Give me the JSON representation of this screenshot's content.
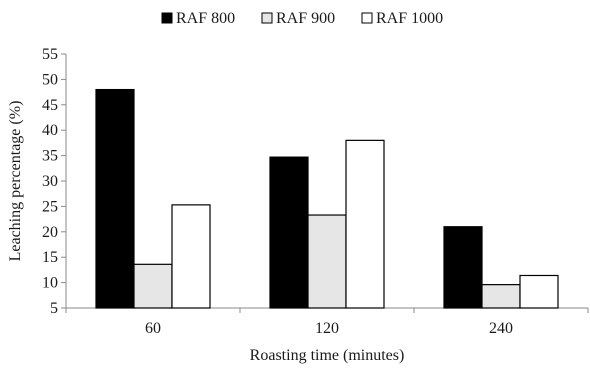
{
  "chart_data": {
    "type": "bar",
    "categories": [
      "60",
      "120",
      "240"
    ],
    "series": [
      {
        "name": "RAF 800",
        "values": [
          48,
          34.7,
          21
        ],
        "color": "#000000"
      },
      {
        "name": "RAF 900",
        "values": [
          13.6,
          23.3,
          9.6
        ],
        "color": "#e6e6e6"
      },
      {
        "name": "RAF 1000",
        "values": [
          25.3,
          38,
          11.4
        ],
        "color": "#ffffff"
      }
    ],
    "yticks": [
      5,
      10,
      15,
      20,
      25,
      30,
      35,
      40,
      45,
      50,
      55
    ],
    "ylim": [
      5,
      55
    ],
    "xlabel": "Roasting time (minutes)",
    "ylabel": "Leaching percentage (%)",
    "grid": false,
    "legend_position": "top"
  }
}
